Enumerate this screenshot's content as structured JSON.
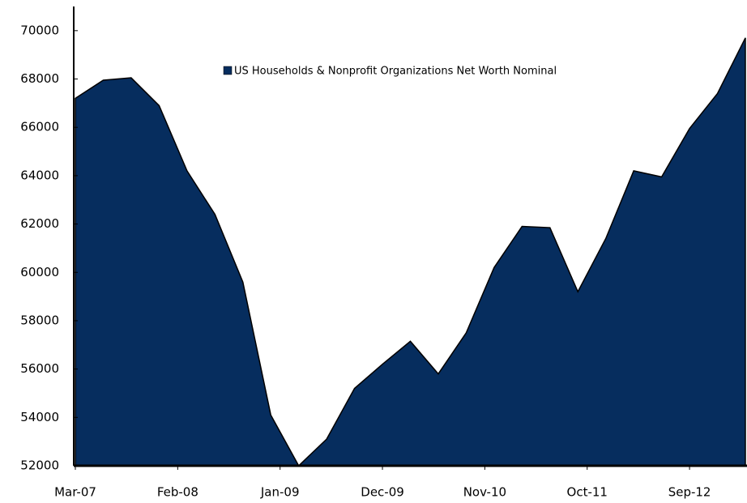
{
  "chart_data": {
    "type": "area",
    "x": [
      "2007-03",
      "2007-06",
      "2007-09",
      "2007-12",
      "2008-03",
      "2008-06",
      "2008-09",
      "2008-12",
      "2009-03",
      "2009-06",
      "2009-09",
      "2009-12",
      "2010-03",
      "2010-06",
      "2010-09",
      "2010-12",
      "2011-03",
      "2011-06",
      "2011-09",
      "2011-12",
      "2012-03",
      "2012-06",
      "2012-09",
      "2012-12",
      "2013-03"
    ],
    "series": [
      {
        "name": "US Households & Nonprofit Organizations Net Worth Nominal",
        "color": "#062d5e",
        "values": [
          67200,
          67950,
          68050,
          66900,
          64200,
          62400,
          59600,
          54100,
          52000,
          53100,
          55200,
          56200,
          57150,
          55800,
          57500,
          60200,
          61900,
          61850,
          59200,
          61400,
          64200,
          63950,
          65950,
          67400,
          69700
        ]
      }
    ],
    "xlim": [
      "2007-03",
      "2013-03"
    ],
    "xticks": [
      {
        "value": "2007-03",
        "label": "Mar-07"
      },
      {
        "value": "2008-02",
        "label": "Feb-08"
      },
      {
        "value": "2009-01",
        "label": "Jan-09"
      },
      {
        "value": "2009-12",
        "label": "Dec-09"
      },
      {
        "value": "2010-11",
        "label": "Nov-10"
      },
      {
        "value": "2011-10",
        "label": "Oct-11"
      },
      {
        "value": "2012-09",
        "label": "Sep-12"
      }
    ],
    "ylim": [
      52000,
      71000
    ],
    "yticks": [
      52000,
      54000,
      56000,
      58000,
      60000,
      62000,
      64000,
      66000,
      68000,
      70000
    ],
    "legend": "top"
  }
}
